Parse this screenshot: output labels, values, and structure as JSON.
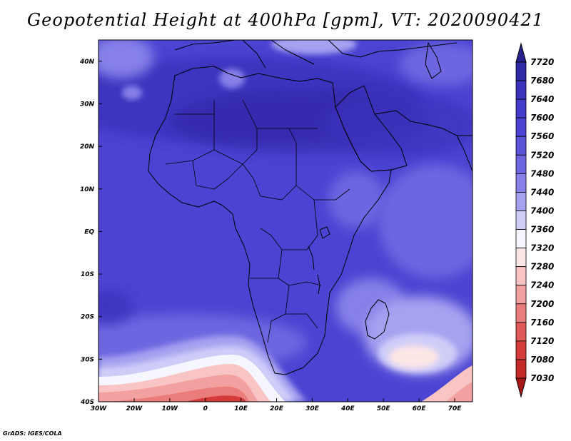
{
  "title": "Geopotential Height at 400hPa [gpm], VT: 2020090421",
  "credit": "GrADS: IGES/COLA",
  "map": {
    "projection": "latlon",
    "lon_range": [
      -30,
      75
    ],
    "lat_range": [
      -40,
      45
    ],
    "background_color": "#4c43d2",
    "x_ticks": [
      {
        "value": -30,
        "label": "30W"
      },
      {
        "value": -20,
        "label": "20W"
      },
      {
        "value": -10,
        "label": "10W"
      },
      {
        "value": 0,
        "label": "0"
      },
      {
        "value": 10,
        "label": "10E"
      },
      {
        "value": 20,
        "label": "20E"
      },
      {
        "value": 30,
        "label": "30E"
      },
      {
        "value": 40,
        "label": "40E"
      },
      {
        "value": 50,
        "label": "50E"
      },
      {
        "value": 60,
        "label": "60E"
      },
      {
        "value": 70,
        "label": "70E"
      }
    ],
    "y_ticks": [
      {
        "value": 40,
        "label": "40N"
      },
      {
        "value": 30,
        "label": "30N"
      },
      {
        "value": 20,
        "label": "20N"
      },
      {
        "value": 10,
        "label": "10N"
      },
      {
        "value": 0,
        "label": "EQ"
      },
      {
        "value": -10,
        "label": "10S"
      },
      {
        "value": -20,
        "label": "20S"
      },
      {
        "value": -30,
        "label": "30S"
      },
      {
        "value": -40,
        "label": "40S"
      }
    ]
  },
  "colorbar": {
    "levels": [
      "7720",
      "7680",
      "7640",
      "7600",
      "7560",
      "7520",
      "7480",
      "7440",
      "7400",
      "7360",
      "7320",
      "7280",
      "7240",
      "7200",
      "7160",
      "7120",
      "7080",
      "7030"
    ],
    "colors": [
      "#28208c",
      "#3128a6",
      "#3b32bc",
      "#443ccb",
      "#4c43d2",
      "#5a52d9",
      "#6d66e0",
      "#8680e8",
      "#a6a2f0",
      "#cfcdf8",
      "#f6f6ff",
      "#fde6e6",
      "#f9c4c4",
      "#f2a0a0",
      "#ea7c7c",
      "#e05858",
      "#d43a3a",
      "#c42a2a",
      "#a81818"
    ]
  }
}
